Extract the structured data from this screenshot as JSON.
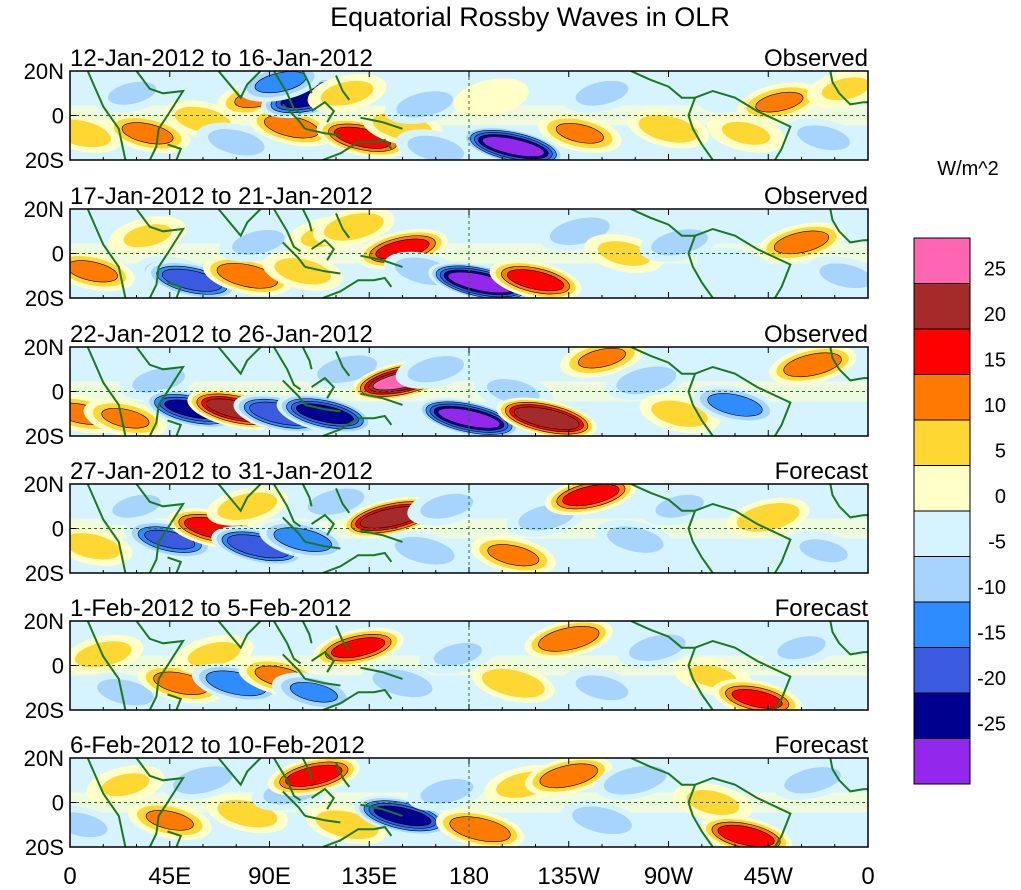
{
  "chart_data": {
    "type": "heatmap",
    "title": "Equatorial Rossby Waves in OLR",
    "units_label": "W/m^2",
    "x_ticks": [
      "0",
      "45E",
      "90E",
      "135E",
      "180",
      "135W",
      "90W",
      "45W",
      "0"
    ],
    "x_tick_lons": [
      0,
      45,
      90,
      135,
      180,
      225,
      270,
      315,
      360
    ],
    "y_ticks": [
      "20N",
      "0",
      "20S"
    ],
    "y_tick_lats": [
      20,
      0,
      -20
    ],
    "xlim": [
      0,
      360
    ],
    "ylim": [
      -20,
      20
    ],
    "colorbar": {
      "labels": [
        "25",
        "20",
        "15",
        "10",
        "5",
        "0",
        "-5",
        "-10",
        "-15",
        "-20",
        "-25"
      ],
      "levels": [
        25,
        20,
        15,
        10,
        5,
        0,
        -5,
        -10,
        -15,
        -20,
        -25
      ],
      "colors": [
        "#ff66b2",
        "#a52a2a",
        "#ff0000",
        "#ff7a00",
        "#ffd733",
        "#ffffc8",
        "#d6f4ff",
        "#a6d4ff",
        "#2e8cff",
        "#3a5ae0",
        "#00008f",
        "#9328ec"
      ]
    },
    "panels": [
      {
        "period": "12-Jan-2012 to 16-Jan-2012",
        "status": "Observed",
        "anomalies": [
          {
            "lon": 5,
            "lat": -8,
            "value": 9
          },
          {
            "lon": 28,
            "lat": 10,
            "value": -6
          },
          {
            "lon": 35,
            "lat": -8,
            "value": 12
          },
          {
            "lon": 60,
            "lat": -2,
            "value": 8
          },
          {
            "lon": 85,
            "lat": 8,
            "value": 11
          },
          {
            "lon": 75,
            "lat": -12,
            "value": -8
          },
          {
            "lon": 100,
            "lat": -5,
            "value": 13
          },
          {
            "lon": 108,
            "lat": 8,
            "value": -22
          },
          {
            "lon": 95,
            "lat": 15,
            "value": -12
          },
          {
            "lon": 125,
            "lat": 10,
            "value": 7
          },
          {
            "lon": 132,
            "lat": -10,
            "value": 18
          },
          {
            "lon": 150,
            "lat": -5,
            "value": 9
          },
          {
            "lon": 160,
            "lat": 5,
            "value": -8
          },
          {
            "lon": 165,
            "lat": -15,
            "value": -8
          },
          {
            "lon": 200,
            "lat": -14,
            "value": -27
          },
          {
            "lon": 190,
            "lat": 8,
            "value": 4
          },
          {
            "lon": 230,
            "lat": -8,
            "value": 11
          },
          {
            "lon": 240,
            "lat": 10,
            "value": -7
          },
          {
            "lon": 270,
            "lat": -6,
            "value": 9
          },
          {
            "lon": 300,
            "lat": 10,
            "value": -5
          },
          {
            "lon": 305,
            "lat": -8,
            "value": 6
          },
          {
            "lon": 320,
            "lat": 6,
            "value": 11
          },
          {
            "lon": 340,
            "lat": -10,
            "value": -7
          },
          {
            "lon": 350,
            "lat": 12,
            "value": 6
          }
        ]
      },
      {
        "period": "17-Jan-2012 to 21-Jan-2012",
        "status": "Observed",
        "anomalies": [
          {
            "lon": 10,
            "lat": -8,
            "value": 12
          },
          {
            "lon": 35,
            "lat": 8,
            "value": 6
          },
          {
            "lon": 48,
            "lat": -10,
            "value": -10
          },
          {
            "lon": 55,
            "lat": -12,
            "value": -19
          },
          {
            "lon": 80,
            "lat": -10,
            "value": 15
          },
          {
            "lon": 85,
            "lat": 5,
            "value": -7
          },
          {
            "lon": 105,
            "lat": -8,
            "value": 8
          },
          {
            "lon": 115,
            "lat": 8,
            "value": 6
          },
          {
            "lon": 128,
            "lat": 12,
            "value": 9
          },
          {
            "lon": 150,
            "lat": 2,
            "value": 17
          },
          {
            "lon": 160,
            "lat": -8,
            "value": -9
          },
          {
            "lon": 185,
            "lat": -13,
            "value": -28
          },
          {
            "lon": 210,
            "lat": -12,
            "value": 18
          },
          {
            "lon": 230,
            "lat": 10,
            "value": -9
          },
          {
            "lon": 250,
            "lat": 0,
            "value": 7
          },
          {
            "lon": 275,
            "lat": 5,
            "value": -8
          },
          {
            "lon": 300,
            "lat": -6,
            "value": -5
          },
          {
            "lon": 330,
            "lat": 5,
            "value": 13
          },
          {
            "lon": 350,
            "lat": -10,
            "value": -7
          }
        ]
      },
      {
        "period": "22-Jan-2012 to 26-Jan-2012",
        "status": "Observed",
        "anomalies": [
          {
            "lon": 5,
            "lat": -10,
            "value": 12
          },
          {
            "lon": 25,
            "lat": -12,
            "value": 11
          },
          {
            "lon": 40,
            "lat": 5,
            "value": -7
          },
          {
            "lon": 55,
            "lat": -8,
            "value": -21
          },
          {
            "lon": 75,
            "lat": -8,
            "value": 23
          },
          {
            "lon": 95,
            "lat": -10,
            "value": -20
          },
          {
            "lon": 115,
            "lat": -10,
            "value": -22
          },
          {
            "lon": 125,
            "lat": 10,
            "value": -9
          },
          {
            "lon": 150,
            "lat": 5,
            "value": 26
          },
          {
            "lon": 165,
            "lat": 10,
            "value": -8
          },
          {
            "lon": 180,
            "lat": -12,
            "value": -27
          },
          {
            "lon": 200,
            "lat": 0,
            "value": -7
          },
          {
            "lon": 215,
            "lat": -12,
            "value": 25
          },
          {
            "lon": 240,
            "lat": 15,
            "value": 11
          },
          {
            "lon": 260,
            "lat": 5,
            "value": -9
          },
          {
            "lon": 275,
            "lat": -10,
            "value": 8
          },
          {
            "lon": 300,
            "lat": -6,
            "value": -13
          },
          {
            "lon": 335,
            "lat": 12,
            "value": 14
          }
        ]
      },
      {
        "period": "27-Jan-2012 to 31-Jan-2012",
        "status": "Forecast",
        "anomalies": [
          {
            "lon": 10,
            "lat": -8,
            "value": 8
          },
          {
            "lon": 30,
            "lat": 10,
            "value": -6
          },
          {
            "lon": 45,
            "lat": -5,
            "value": -16
          },
          {
            "lon": 65,
            "lat": 0,
            "value": 19
          },
          {
            "lon": 80,
            "lat": 10,
            "value": 9
          },
          {
            "lon": 85,
            "lat": -8,
            "value": -20
          },
          {
            "lon": 105,
            "lat": -5,
            "value": -14
          },
          {
            "lon": 120,
            "lat": 12,
            "value": -8
          },
          {
            "lon": 145,
            "lat": 5,
            "value": 24
          },
          {
            "lon": 160,
            "lat": -10,
            "value": -9
          },
          {
            "lon": 170,
            "lat": 10,
            "value": -7
          },
          {
            "lon": 200,
            "lat": -12,
            "value": 12
          },
          {
            "lon": 215,
            "lat": 5,
            "value": -8
          },
          {
            "lon": 235,
            "lat": 15,
            "value": 18
          },
          {
            "lon": 255,
            "lat": -5,
            "value": -8
          },
          {
            "lon": 275,
            "lat": 10,
            "value": -6
          },
          {
            "lon": 315,
            "lat": 5,
            "value": 10
          },
          {
            "lon": 340,
            "lat": -10,
            "value": -6
          }
        ]
      },
      {
        "period": "1-Feb-2012 to 5-Feb-2012",
        "status": "Forecast",
        "anomalies": [
          {
            "lon": 15,
            "lat": 5,
            "value": 8
          },
          {
            "lon": 25,
            "lat": -12,
            "value": -8
          },
          {
            "lon": 50,
            "lat": -8,
            "value": 13
          },
          {
            "lon": 65,
            "lat": 5,
            "value": 7
          },
          {
            "lon": 75,
            "lat": -8,
            "value": -15
          },
          {
            "lon": 95,
            "lat": -5,
            "value": 12
          },
          {
            "lon": 110,
            "lat": -12,
            "value": -11
          },
          {
            "lon": 130,
            "lat": 8,
            "value": 17
          },
          {
            "lon": 150,
            "lat": -8,
            "value": -9
          },
          {
            "lon": 175,
            "lat": 5,
            "value": -6
          },
          {
            "lon": 200,
            "lat": -8,
            "value": 10
          },
          {
            "lon": 225,
            "lat": 12,
            "value": 15
          },
          {
            "lon": 240,
            "lat": -10,
            "value": -7
          },
          {
            "lon": 265,
            "lat": 8,
            "value": -8
          },
          {
            "lon": 290,
            "lat": -5,
            "value": 6
          },
          {
            "lon": 310,
            "lat": -15,
            "value": 16
          },
          {
            "lon": 330,
            "lat": 8,
            "value": -6
          }
        ]
      },
      {
        "period": "6-Feb-2012 to 10-Feb-2012",
        "status": "Forecast",
        "anomalies": [
          {
            "lon": 5,
            "lat": -10,
            "value": -7
          },
          {
            "lon": 25,
            "lat": 8,
            "value": 6
          },
          {
            "lon": 45,
            "lat": -8,
            "value": 11
          },
          {
            "lon": 60,
            "lat": 10,
            "value": -9
          },
          {
            "lon": 80,
            "lat": -5,
            "value": 9
          },
          {
            "lon": 100,
            "lat": 5,
            "value": -8
          },
          {
            "lon": 110,
            "lat": 12,
            "value": 18
          },
          {
            "lon": 125,
            "lat": -10,
            "value": 10
          },
          {
            "lon": 150,
            "lat": -6,
            "value": -22
          },
          {
            "lon": 170,
            "lat": 5,
            "value": -7
          },
          {
            "lon": 185,
            "lat": -12,
            "value": 15
          },
          {
            "lon": 205,
            "lat": 8,
            "value": 8
          },
          {
            "lon": 225,
            "lat": 12,
            "value": 14
          },
          {
            "lon": 240,
            "lat": -8,
            "value": -9
          },
          {
            "lon": 255,
            "lat": 10,
            "value": -10
          },
          {
            "lon": 290,
            "lat": 0,
            "value": 7
          },
          {
            "lon": 305,
            "lat": -15,
            "value": 18
          },
          {
            "lon": 335,
            "lat": 10,
            "value": -8
          }
        ]
      }
    ]
  }
}
